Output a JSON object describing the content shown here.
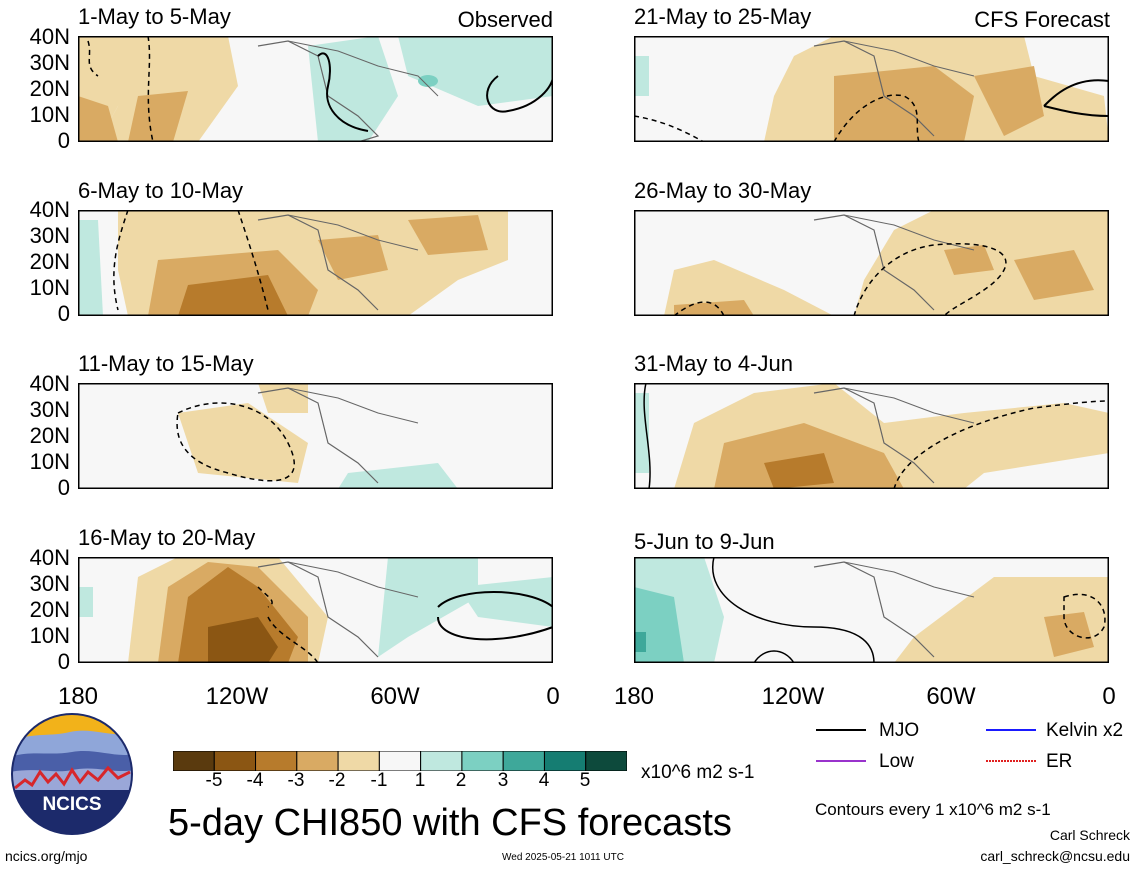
{
  "panels": [
    {
      "title": "1-May to 5-May",
      "tag": "Observed"
    },
    {
      "title": "6-May to 10-May",
      "tag": ""
    },
    {
      "title": "11-May to 15-May",
      "tag": ""
    },
    {
      "title": "16-May to 20-May",
      "tag": ""
    },
    {
      "title": "21-May to 25-May",
      "tag": "CFS Forecast"
    },
    {
      "title": "26-May to 30-May",
      "tag": ""
    },
    {
      "title": "31-May to 4-Jun",
      "tag": ""
    },
    {
      "title": "5-Jun to 9-Jun",
      "tag": ""
    }
  ],
  "lat_labels": [
    "40N",
    "30N",
    "20N",
    "10N",
    "0"
  ],
  "lon_labels": [
    "180",
    "120W",
    "60W",
    "0"
  ],
  "colorbar": {
    "labels": [
      "-5",
      "-4",
      "-3",
      "-2",
      "-1",
      "1",
      "2",
      "3",
      "4",
      "5"
    ],
    "colors": [
      "#5a3a0e",
      "#8b5613",
      "#b77b2c",
      "#d9aa63",
      "#efd9a6",
      "#f7f7f7",
      "#bfe8df",
      "#7cd0c2",
      "#3ea89a",
      "#157d72",
      "#0d4a3c"
    ],
    "units": "x10^6 m2 s-1"
  },
  "legend": [
    {
      "label": "MJO",
      "color": "#000000"
    },
    {
      "label": "Kelvin x2",
      "color": "#1a1aff"
    },
    {
      "label": "Low",
      "color": "#9933cc"
    },
    {
      "label": "ER",
      "color": "#e02020"
    }
  ],
  "title": "5-day CHI850 with CFS forecasts",
  "contour_note": "Contours every 1 x10^6 m2 s-1",
  "author": "Carl Schreck",
  "email": "carl_schreck@ncsu.edu",
  "website": "ncics.org/mjo",
  "timestamp": "Wed 2025-05-21 1011 UTC",
  "logo_text": "NCICS"
}
